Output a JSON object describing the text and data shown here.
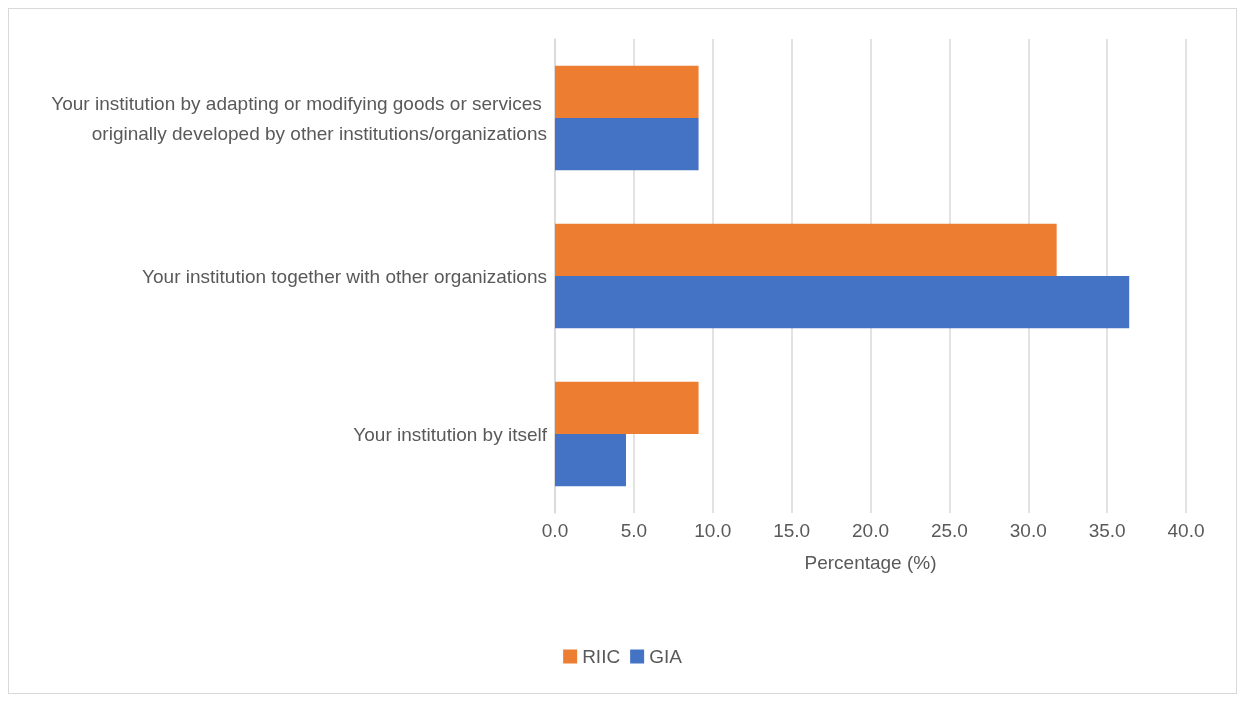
{
  "chart_data": {
    "type": "bar",
    "orientation": "horizontal",
    "xlabel": "Percentage (%)",
    "categories": [
      "Your institution by adapting or modifying goods or services originally developed by other institutions/organizations",
      "Your institution together with other organizations",
      "Your institution by itself"
    ],
    "series": [
      {
        "name": "RIIC",
        "color": "#ed7d31",
        "values": [
          9.1,
          31.8,
          9.1
        ]
      },
      {
        "name": "GIA",
        "color": "#4472c4",
        "values": [
          9.1,
          36.4,
          4.5
        ]
      }
    ],
    "xlim": [
      0,
      40
    ],
    "xticks": [
      {
        "value": 0,
        "label": "0.0"
      },
      {
        "value": 5,
        "label": "5.0"
      },
      {
        "value": 10,
        "label": "10.0"
      },
      {
        "value": 15,
        "label": "15.0"
      },
      {
        "value": 20,
        "label": "20.0"
      },
      {
        "value": 25,
        "label": "25.0"
      },
      {
        "value": 30,
        "label": "30.0"
      },
      {
        "value": 35,
        "label": "35.0"
      },
      {
        "value": 40,
        "label": "40.0"
      }
    ],
    "grid": "x",
    "legend": "bottom"
  }
}
